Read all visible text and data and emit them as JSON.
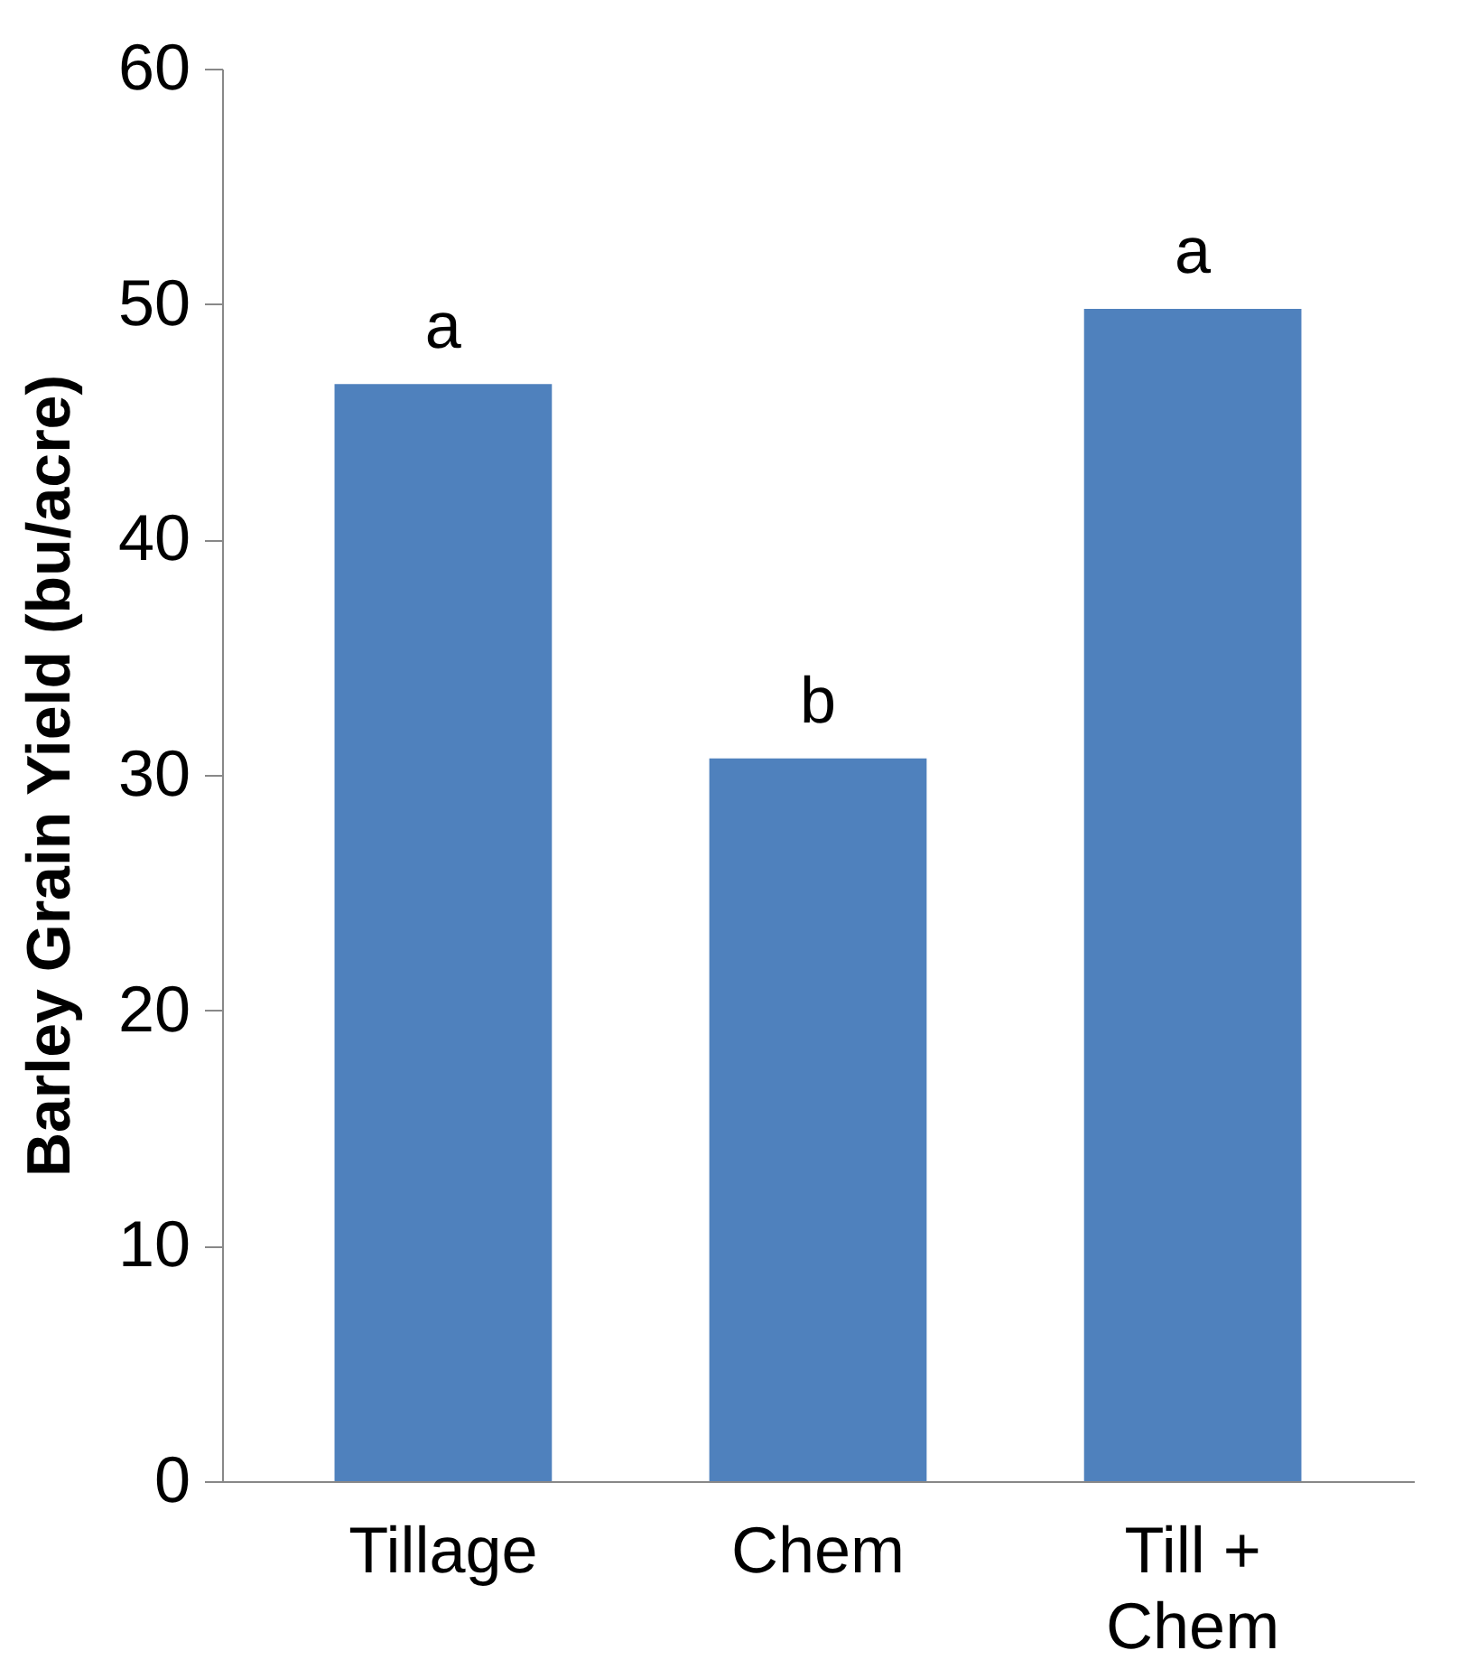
{
  "chart_data": {
    "type": "bar",
    "ylabel": "Barley Grain Yield (bu/acre)",
    "categories": [
      "Tillage",
      "Chem",
      "Till + Chem"
    ],
    "values": [
      46.6,
      30.7,
      49.8
    ],
    "color": "#4f81bd",
    "ylim": [
      0,
      60
    ],
    "yticks": [
      0,
      10,
      20,
      30,
      40,
      50,
      60
    ],
    "annotations": [
      {
        "text": "a",
        "x": "Tillage",
        "y": 46.6
      },
      {
        "text": "b",
        "x": "Chem",
        "y": 30.7
      },
      {
        "text": "a",
        "x": "Till + Chem",
        "y": 49.8
      }
    ]
  }
}
